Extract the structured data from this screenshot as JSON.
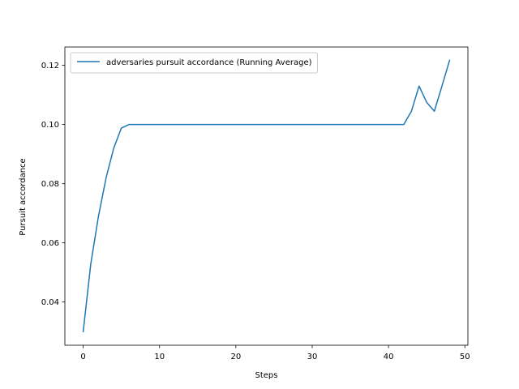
{
  "chart_data": {
    "type": "line",
    "title": "",
    "xlabel": "Steps",
    "ylabel": "Pursuit accordance",
    "xlim": [
      -2.4,
      50.4
    ],
    "ylim": [
      0.0254,
      0.1262
    ],
    "x_ticks": [
      0,
      10,
      20,
      30,
      40,
      50
    ],
    "y_ticks": [
      0.04,
      0.06,
      0.08,
      0.1,
      0.12
    ],
    "x_tick_labels": [
      "0",
      "10",
      "20",
      "30",
      "40",
      "50"
    ],
    "y_tick_labels": [
      "0.04",
      "0.06",
      "0.08",
      "0.10",
      "0.12"
    ],
    "grid": false,
    "legend_position": "top-left",
    "series": [
      {
        "name": "adversaries pursuit accordance (Running Average)",
        "color": "#1f77b4",
        "x": [
          0,
          1,
          2,
          3,
          4,
          5,
          6,
          7,
          8,
          9,
          10,
          11,
          12,
          13,
          14,
          15,
          16,
          17,
          18,
          19,
          20,
          21,
          22,
          23,
          24,
          25,
          26,
          27,
          28,
          29,
          30,
          31,
          32,
          33,
          34,
          35,
          36,
          37,
          38,
          39,
          40,
          41,
          42,
          43,
          44,
          45,
          46,
          47,
          48
        ],
        "y": [
          0.03,
          0.053,
          0.069,
          0.082,
          0.092,
          0.0988,
          0.1,
          0.1,
          0.1,
          0.1,
          0.1,
          0.1,
          0.1,
          0.1,
          0.1,
          0.1,
          0.1,
          0.1,
          0.1,
          0.1,
          0.1,
          0.1,
          0.1,
          0.1,
          0.1,
          0.1,
          0.1,
          0.1,
          0.1,
          0.1,
          0.1,
          0.1,
          0.1,
          0.1,
          0.1,
          0.1,
          0.1,
          0.1,
          0.1,
          0.1,
          0.1,
          0.1,
          0.1,
          0.1045,
          0.113,
          0.1075,
          0.1045,
          0.113,
          0.1217
        ]
      }
    ]
  }
}
